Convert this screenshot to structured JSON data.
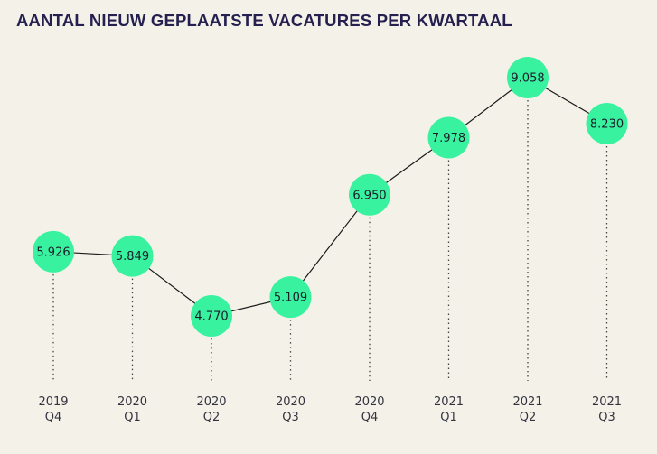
{
  "header": {
    "title": "AANTAL NIEUW GEPLAATSTE VACATURES PER KWARTAAL"
  },
  "chart_data": {
    "type": "line",
    "title": "AANTAL NIEUW GEPLAATSTE VACATURES PER KWARTAAL",
    "categories": [
      [
        "2019",
        "Q4"
      ],
      [
        "2020",
        "Q1"
      ],
      [
        "2020",
        "Q2"
      ],
      [
        "2020",
        "Q3"
      ],
      [
        "2020",
        "Q4"
      ],
      [
        "2021",
        "Q1"
      ],
      [
        "2021",
        "Q2"
      ],
      [
        "2021",
        "Q3"
      ]
    ],
    "values": [
      5926,
      5849,
      4770,
      5109,
      6950,
      7978,
      9058,
      8230
    ],
    "data_labels": [
      "5.926",
      "5.849",
      "4.770",
      "5.109",
      "6.950",
      "7.978",
      "9.058",
      "8.230"
    ],
    "xlabel": "",
    "ylabel": "",
    "ylim": [
      4770,
      9058
    ],
    "grid": false,
    "colors": {
      "marker": "#38f2a0",
      "line": "#1a1a1a",
      "title": "#25204f",
      "background": "#f4f2e8"
    }
  }
}
